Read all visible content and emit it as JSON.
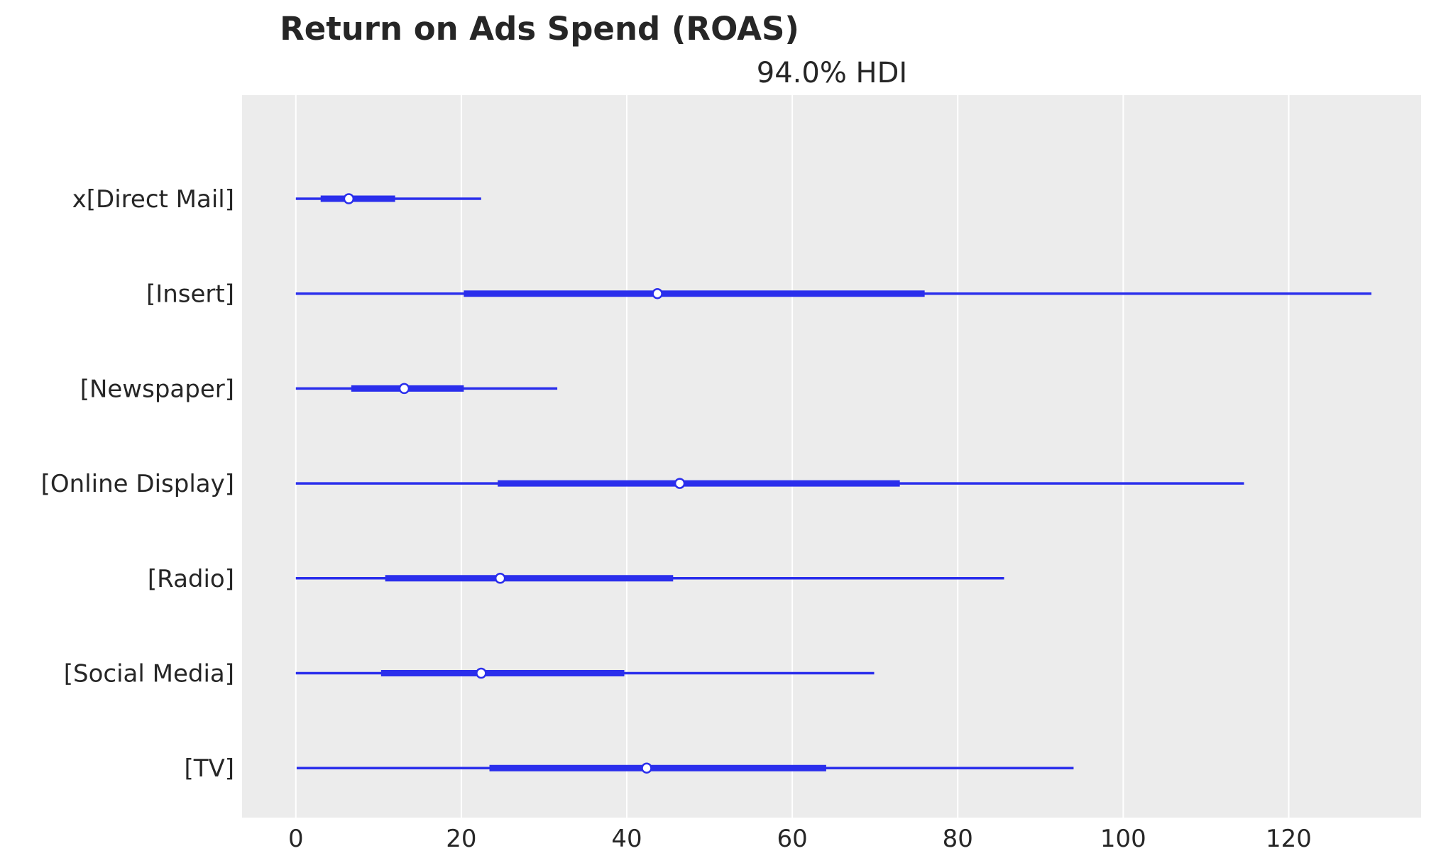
{
  "chart_data": {
    "type": "forest",
    "title": "Return on Ads Spend (ROAS)",
    "subtitle": "94.0% HDI",
    "xlabel": "",
    "ylabel": "",
    "xlim": [
      -6.5,
      136
    ],
    "xticks": [
      0,
      20,
      40,
      60,
      80,
      100,
      120
    ],
    "xtick_labels": [
      "0",
      "20",
      "40",
      "60",
      "80",
      "100",
      "120"
    ],
    "grid": "vertical",
    "background": "#ececec",
    "color": "#2a2eec",
    "categories": [
      "x[Direct Mail]",
      "[Insert]",
      "[Newspaper]",
      "[Online Display]",
      "[Radio]",
      "[Social Media]",
      "[TV]"
    ],
    "series": [
      {
        "hdi_94": [
          0,
          22.4
        ],
        "iqr": [
          3.0,
          12.0
        ],
        "median": 6.4
      },
      {
        "hdi_94": [
          0,
          130.0
        ],
        "iqr": [
          20.3,
          76.0
        ],
        "median": 43.7
      },
      {
        "hdi_94": [
          0,
          31.6
        ],
        "iqr": [
          6.7,
          20.3
        ],
        "median": 13.1
      },
      {
        "hdi_94": [
          0,
          114.6
        ],
        "iqr": [
          24.4,
          73.0
        ],
        "median": 46.4
      },
      {
        "hdi_94": [
          0,
          85.6
        ],
        "iqr": [
          10.8,
          45.6
        ],
        "median": 24.7
      },
      {
        "hdi_94": [
          0,
          69.9
        ],
        "iqr": [
          10.3,
          39.7
        ],
        "median": 22.4
      },
      {
        "hdi_94": [
          0.1,
          94.0
        ],
        "iqr": [
          23.4,
          64.1
        ],
        "median": 42.4
      }
    ]
  }
}
